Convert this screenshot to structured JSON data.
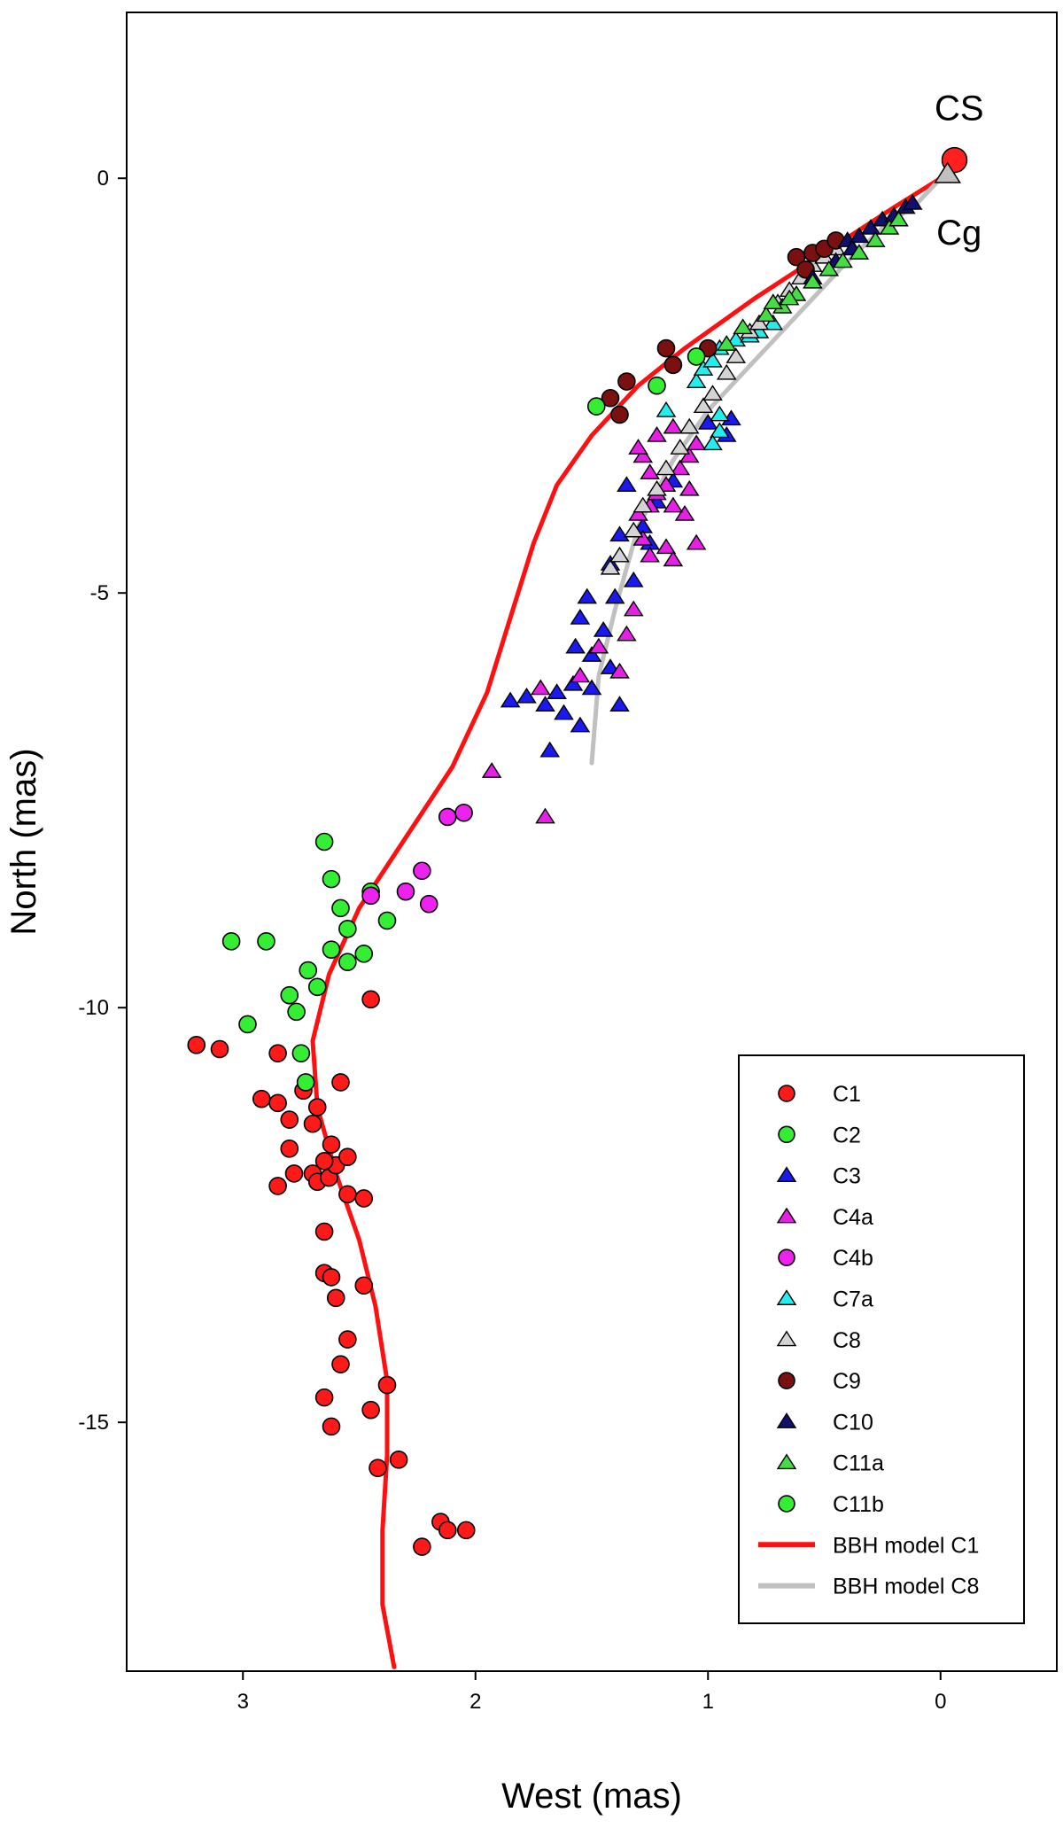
{
  "chart_data": {
    "type": "scatter",
    "xlabel": "West (mas)",
    "ylabel": "North (mas)",
    "xlim": [
      3.5,
      -0.5
    ],
    "ylim": [
      -18,
      2
    ],
    "x_reversed": true,
    "xticks": [
      3,
      2,
      1,
      0
    ],
    "yticks": [
      0,
      -5,
      -10,
      -15
    ],
    "grid": false,
    "legend_position": "bottom-right",
    "annotations": [
      {
        "text": "CS",
        "x": -0.08,
        "y": 0.7
      },
      {
        "text": "Cg",
        "x": -0.08,
        "y": -0.8
      }
    ],
    "reference_points": [
      {
        "name": "CS",
        "marker": "circle",
        "color": "#ff2020",
        "x": -0.06,
        "y": 0.22
      },
      {
        "name": "Cg",
        "marker": "triangle",
        "color": "#c0c0c0",
        "x": -0.03,
        "y": 0.05
      }
    ],
    "series": [
      {
        "name": "C1",
        "marker": "circle",
        "color": "#ff1a1a",
        "points": [
          [
            3.2,
            -10.45
          ],
          [
            3.1,
            -10.5
          ],
          [
            2.85,
            -10.55
          ],
          [
            2.92,
            -11.1
          ],
          [
            2.85,
            -11.15
          ],
          [
            2.8,
            -11.35
          ],
          [
            2.8,
            -11.7
          ],
          [
            2.78,
            -12.0
          ],
          [
            2.85,
            -12.15
          ],
          [
            2.7,
            -12.0
          ],
          [
            2.68,
            -12.1
          ],
          [
            2.63,
            -12.05
          ],
          [
            2.6,
            -11.9
          ],
          [
            2.55,
            -11.8
          ],
          [
            2.55,
            -12.25
          ],
          [
            2.48,
            -12.3
          ],
          [
            2.62,
            -11.65
          ],
          [
            2.65,
            -11.85
          ],
          [
            2.7,
            -11.4
          ],
          [
            2.74,
            -11.0
          ],
          [
            2.68,
            -11.2
          ],
          [
            2.58,
            -10.9
          ],
          [
            2.45,
            -9.9
          ],
          [
            2.65,
            -12.7
          ],
          [
            2.65,
            -13.2
          ],
          [
            2.62,
            -13.25
          ],
          [
            2.6,
            -13.5
          ],
          [
            2.48,
            -13.35
          ],
          [
            2.55,
            -14.0
          ],
          [
            2.58,
            -14.3
          ],
          [
            2.65,
            -14.7
          ],
          [
            2.62,
            -15.05
          ],
          [
            2.45,
            -14.85
          ],
          [
            2.38,
            -14.55
          ],
          [
            2.42,
            -15.55
          ],
          [
            2.33,
            -15.45
          ],
          [
            2.23,
            -16.5
          ],
          [
            2.15,
            -16.2
          ],
          [
            2.12,
            -16.3
          ],
          [
            2.04,
            -16.3
          ]
        ]
      },
      {
        "name": "C2",
        "marker": "circle",
        "color": "#33ee33",
        "points": [
          [
            3.05,
            -9.2
          ],
          [
            2.9,
            -9.2
          ],
          [
            2.98,
            -10.2
          ],
          [
            2.8,
            -9.85
          ],
          [
            2.77,
            -10.05
          ],
          [
            2.72,
            -9.55
          ],
          [
            2.75,
            -10.55
          ],
          [
            2.73,
            -10.9
          ],
          [
            2.65,
            -8.0
          ],
          [
            2.62,
            -8.45
          ],
          [
            2.58,
            -8.8
          ],
          [
            2.55,
            -9.05
          ],
          [
            2.62,
            -9.3
          ],
          [
            2.55,
            -9.45
          ],
          [
            2.68,
            -9.75
          ],
          [
            2.45,
            -8.6
          ],
          [
            2.38,
            -8.95
          ],
          [
            2.48,
            -9.35
          ]
        ]
      },
      {
        "name": "C3",
        "marker": "triangle",
        "color": "#1a1aee",
        "points": [
          [
            1.85,
            -6.3
          ],
          [
            1.78,
            -6.25
          ],
          [
            1.7,
            -6.35
          ],
          [
            1.65,
            -6.2
          ],
          [
            1.58,
            -6.1
          ],
          [
            1.62,
            -6.45
          ],
          [
            1.55,
            -6.6
          ],
          [
            1.68,
            -6.9
          ],
          [
            1.5,
            -6.15
          ],
          [
            1.38,
            -6.35
          ],
          [
            1.5,
            -5.75
          ],
          [
            1.57,
            -5.65
          ],
          [
            1.45,
            -5.45
          ],
          [
            1.42,
            -5.9
          ],
          [
            1.55,
            -5.3
          ],
          [
            1.52,
            -5.05
          ],
          [
            1.4,
            -5.05
          ],
          [
            1.32,
            -4.85
          ],
          [
            1.42,
            -4.65
          ],
          [
            1.38,
            -4.3
          ],
          [
            1.28,
            -4.2
          ],
          [
            1.25,
            -4.4
          ],
          [
            1.22,
            -3.9
          ],
          [
            1.15,
            -3.65
          ],
          [
            1.35,
            -3.7
          ],
          [
            1.0,
            -2.95
          ],
          [
            0.92,
            -3.1
          ],
          [
            0.9,
            -2.9
          ]
        ]
      },
      {
        "name": "C4a",
        "marker": "triangle",
        "color": "#e61ee6",
        "points": [
          [
            1.93,
            -7.15
          ],
          [
            1.7,
            -7.7
          ],
          [
            1.72,
            -6.15
          ],
          [
            1.55,
            -6.0
          ],
          [
            1.47,
            -5.65
          ],
          [
            1.38,
            -5.95
          ],
          [
            1.35,
            -5.5
          ],
          [
            1.32,
            -5.2
          ],
          [
            1.25,
            -4.55
          ],
          [
            1.18,
            -4.45
          ],
          [
            1.15,
            -4.6
          ],
          [
            1.1,
            -4.05
          ],
          [
            1.05,
            -4.4
          ],
          [
            1.3,
            -4.05
          ],
          [
            1.25,
            -3.95
          ],
          [
            1.22,
            -3.8
          ],
          [
            1.18,
            -3.7
          ],
          [
            1.15,
            -3.95
          ],
          [
            1.08,
            -3.75
          ],
          [
            1.12,
            -3.5
          ],
          [
            1.08,
            -3.35
          ],
          [
            1.25,
            -3.55
          ],
          [
            1.28,
            -3.35
          ],
          [
            1.3,
            -3.25
          ],
          [
            1.22,
            -3.1
          ],
          [
            1.15,
            -3.0
          ],
          [
            1.05,
            -3.2
          ],
          [
            1.28,
            -4.35
          ]
        ]
      },
      {
        "name": "C4b",
        "marker": "circle",
        "color": "#ee22ee",
        "points": [
          [
            2.45,
            -8.65
          ],
          [
            2.3,
            -8.6
          ],
          [
            2.23,
            -8.35
          ],
          [
            2.2,
            -8.75
          ],
          [
            2.12,
            -7.7
          ],
          [
            2.05,
            -7.65
          ]
        ]
      },
      {
        "name": "C7a",
        "marker": "triangle",
        "color": "#22eeee",
        "points": [
          [
            1.18,
            -2.8
          ],
          [
            1.05,
            -2.45
          ],
          [
            1.02,
            -2.3
          ],
          [
            0.98,
            -2.2
          ],
          [
            0.95,
            -2.05
          ],
          [
            0.88,
            -1.95
          ],
          [
            0.82,
            -1.9
          ],
          [
            0.78,
            -1.85
          ],
          [
            0.72,
            -1.75
          ],
          [
            0.95,
            -3.05
          ],
          [
            0.98,
            -3.2
          ],
          [
            0.95,
            -2.85
          ]
        ]
      },
      {
        "name": "C8",
        "marker": "triangle",
        "color": "#d4d4d4",
        "points": [
          [
            1.42,
            -4.7
          ],
          [
            1.38,
            -4.55
          ],
          [
            1.32,
            -4.25
          ],
          [
            1.28,
            -3.95
          ],
          [
            1.22,
            -3.75
          ],
          [
            1.18,
            -3.5
          ],
          [
            1.12,
            -3.25
          ],
          [
            1.08,
            -3.0
          ],
          [
            1.02,
            -2.75
          ],
          [
            0.98,
            -2.6
          ],
          [
            0.92,
            -2.35
          ],
          [
            0.88,
            -2.15
          ],
          [
            0.82,
            -1.85
          ],
          [
            0.78,
            -1.75
          ],
          [
            0.7,
            -1.5
          ],
          [
            0.65,
            -1.35
          ],
          [
            0.6,
            -1.2
          ],
          [
            0.55,
            -1.05
          ],
          [
            0.5,
            -0.95
          ],
          [
            0.45,
            -0.85
          ]
        ]
      },
      {
        "name": "C9",
        "marker": "circle",
        "color": "#7a1010",
        "points": [
          [
            1.38,
            -2.85
          ],
          [
            1.35,
            -2.45
          ],
          [
            1.42,
            -2.65
          ],
          [
            1.18,
            -2.05
          ],
          [
            1.15,
            -2.25
          ],
          [
            1.0,
            -2.05
          ],
          [
            0.62,
            -0.95
          ],
          [
            0.58,
            -1.1
          ],
          [
            0.55,
            -0.9
          ],
          [
            0.5,
            -0.85
          ],
          [
            0.45,
            -0.75
          ]
        ]
      },
      {
        "name": "C10",
        "marker": "triangle",
        "color": "#10106e",
        "points": [
          [
            0.4,
            -0.75
          ],
          [
            0.35,
            -0.7
          ],
          [
            0.3,
            -0.6
          ],
          [
            0.25,
            -0.5
          ],
          [
            0.2,
            -0.45
          ],
          [
            0.15,
            -0.35
          ],
          [
            0.12,
            -0.3
          ],
          [
            0.38,
            -0.85
          ],
          [
            0.45,
            -1.0
          ],
          [
            0.55,
            -1.2
          ]
        ]
      },
      {
        "name": "C11a",
        "marker": "triangle",
        "color": "#44dd44",
        "points": [
          [
            0.92,
            -2.0
          ],
          [
            0.85,
            -1.8
          ],
          [
            0.75,
            -1.65
          ],
          [
            0.68,
            -1.55
          ],
          [
            0.62,
            -1.4
          ],
          [
            0.55,
            -1.25
          ],
          [
            0.48,
            -1.1
          ],
          [
            0.42,
            -1.0
          ],
          [
            0.35,
            -0.9
          ],
          [
            0.28,
            -0.75
          ],
          [
            0.22,
            -0.6
          ],
          [
            0.18,
            -0.5
          ],
          [
            0.72,
            -1.5
          ],
          [
            0.65,
            -1.45
          ]
        ]
      },
      {
        "name": "C11b",
        "marker": "circle",
        "color": "#33ee33",
        "points": [
          [
            1.48,
            -2.75
          ],
          [
            1.22,
            -2.5
          ],
          [
            1.05,
            -2.15
          ]
        ]
      },
      {
        "name": "BBH model C1",
        "marker": "line",
        "color": "#ff1010",
        "points": [
          [
            0.0,
            0.0
          ],
          [
            0.2,
            -0.35
          ],
          [
            0.5,
            -0.9
          ],
          [
            0.8,
            -1.45
          ],
          [
            1.1,
            -2.05
          ],
          [
            1.3,
            -2.5
          ],
          [
            1.5,
            -3.1
          ],
          [
            1.65,
            -3.7
          ],
          [
            1.75,
            -4.4
          ],
          [
            1.85,
            -5.3
          ],
          [
            1.95,
            -6.2
          ],
          [
            2.1,
            -7.1
          ],
          [
            2.3,
            -7.95
          ],
          [
            2.5,
            -8.8
          ],
          [
            2.63,
            -9.6
          ],
          [
            2.7,
            -10.4
          ],
          [
            2.68,
            -11.2
          ],
          [
            2.6,
            -12.0
          ],
          [
            2.5,
            -12.8
          ],
          [
            2.43,
            -13.6
          ],
          [
            2.38,
            -14.5
          ],
          [
            2.38,
            -15.4
          ],
          [
            2.4,
            -16.3
          ],
          [
            2.4,
            -17.2
          ],
          [
            2.35,
            -17.95
          ]
        ]
      },
      {
        "name": "BBH model C8",
        "marker": "line",
        "color": "#c0c0c0",
        "points": [
          [
            0.0,
            0.0
          ],
          [
            0.1,
            -0.3
          ],
          [
            0.25,
            -0.6
          ],
          [
            0.4,
            -1.0
          ],
          [
            0.6,
            -1.6
          ],
          [
            0.8,
            -2.2
          ],
          [
            1.0,
            -2.8
          ],
          [
            1.15,
            -3.4
          ],
          [
            1.3,
            -4.2
          ],
          [
            1.4,
            -5.2
          ],
          [
            1.47,
            -6.0
          ],
          [
            1.5,
            -7.05
          ]
        ]
      }
    ]
  }
}
